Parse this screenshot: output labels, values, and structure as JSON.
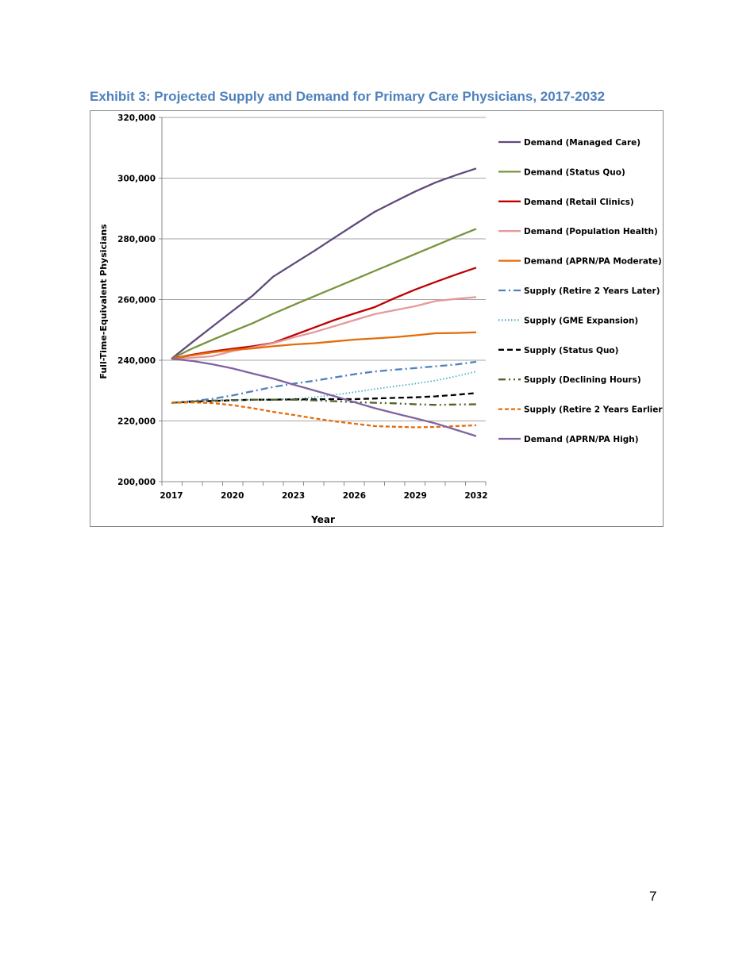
{
  "title": "Exhibit 3: Projected Supply and Demand for Primary Care Physicians, 2017-2032",
  "page_number": "7",
  "chart_data": {
    "type": "line",
    "title": "Exhibit 3: Projected Supply and Demand for Primary Care Physicians, 2017-2032",
    "xlabel": "Year",
    "ylabel": "Full-Time-Equivalent Physicians",
    "x": [
      2017,
      2018,
      2019,
      2020,
      2021,
      2022,
      2023,
      2024,
      2025,
      2026,
      2027,
      2028,
      2029,
      2030,
      2031,
      2032
    ],
    "xticks": [
      "2017",
      "2020",
      "2023",
      "2026",
      "2029",
      "2032"
    ],
    "yticks": [
      "200,000",
      "220,000",
      "240,000",
      "260,000",
      "280,000",
      "300,000",
      "320,000"
    ],
    "ylim": [
      200000,
      320000
    ],
    "grid": "horizontal",
    "legend": "right",
    "series": [
      {
        "name": "Demand (Managed Care)",
        "color": "#604A7B",
        "style": "solid",
        "values": [
          240500,
          245800,
          251000,
          256200,
          261300,
          267500,
          271700,
          275900,
          280300,
          284600,
          288900,
          292300,
          295600,
          298600,
          301000,
          303200
        ]
      },
      {
        "name": "Demand (Status Quo)",
        "color": "#77933C",
        "style": "solid",
        "values": [
          240500,
          243800,
          246700,
          249500,
          252200,
          255300,
          258200,
          261000,
          263800,
          266600,
          269400,
          272200,
          275000,
          277800,
          280600,
          283300
        ]
      },
      {
        "name": "Demand (Retail Clinics)",
        "color": "#C00000",
        "style": "solid",
        "values": [
          240500,
          241800,
          242900,
          243800,
          244600,
          245700,
          248200,
          250700,
          253200,
          255400,
          257500,
          260500,
          263300,
          265800,
          268200,
          270500
        ]
      },
      {
        "name": "Demand (Population Health)",
        "color": "#E6999A",
        "style": "solid",
        "values": [
          240500,
          240800,
          241300,
          243000,
          244200,
          245600,
          247500,
          249200,
          251200,
          253200,
          255200,
          256500,
          257800,
          259500,
          260200,
          260800
        ]
      },
      {
        "name": "Demand (APRN/PA Moderate)",
        "color": "#E46C0A",
        "style": "solid",
        "values": [
          240500,
          241600,
          242600,
          243400,
          243900,
          244600,
          245200,
          245600,
          246200,
          246800,
          247200,
          247600,
          248200,
          248900,
          249000,
          249200
        ]
      },
      {
        "name": "Supply (Retire 2 Years Later)",
        "color": "#4F81BD",
        "style": "dashdot",
        "values": [
          226000,
          226500,
          227300,
          228400,
          229800,
          231200,
          232300,
          233200,
          234300,
          235400,
          236300,
          236900,
          237400,
          238000,
          238600,
          239500
        ]
      },
      {
        "name": "Supply (GME Expansion)",
        "color": "#4BACC6",
        "style": "dotted",
        "values": [
          226000,
          226400,
          226700,
          226900,
          227000,
          227100,
          227300,
          227800,
          228600,
          229500,
          230500,
          231400,
          232300,
          233300,
          234700,
          236300
        ]
      },
      {
        "name": "Supply (Status Quo)",
        "color": "#000000",
        "style": "dashed",
        "values": [
          226000,
          226300,
          226600,
          226800,
          227000,
          227000,
          227100,
          227100,
          227200,
          227200,
          227400,
          227600,
          227800,
          228100,
          228600,
          229200
        ]
      },
      {
        "name": "Supply (Declining Hours)",
        "color": "#4F6228",
        "style": "dashdotdot",
        "values": [
          226000,
          226400,
          226700,
          226900,
          227000,
          227000,
          227000,
          226800,
          226500,
          226200,
          226000,
          225800,
          225500,
          225300,
          225400,
          225500
        ]
      },
      {
        "name": "Supply (Retire 2 Years Earlier)",
        "color": "#E46C0A",
        "style": "shortdash",
        "values": [
          226000,
          226100,
          225900,
          225200,
          224200,
          223000,
          222000,
          220900,
          219900,
          219100,
          218300,
          218100,
          217900,
          218000,
          218300,
          218600
        ]
      },
      {
        "name": "Demand (APRN/PA High)",
        "color": "#8064A2",
        "style": "solid",
        "values": [
          240500,
          239800,
          238700,
          237300,
          235600,
          234000,
          232000,
          230100,
          228200,
          226200,
          224200,
          222500,
          220900,
          219200,
          217100,
          215000
        ]
      }
    ]
  }
}
